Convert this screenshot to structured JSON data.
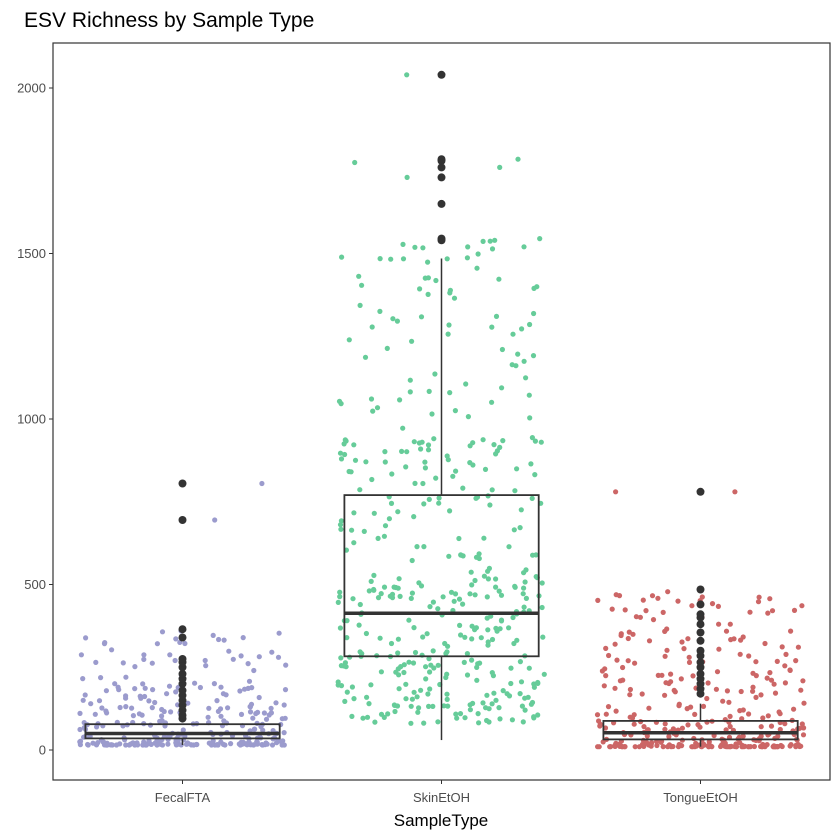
{
  "chart_data": {
    "type": "box",
    "title": "ESV Richness by Sample Type",
    "xlabel": "SampleType",
    "ylabel": "",
    "ylim": [
      -90,
      2130
    ],
    "yticks": [
      0,
      500,
      1000,
      1500,
      2000
    ],
    "grid": false,
    "legend": "none",
    "categories": [
      "FecalFTA",
      "SkinEtOH",
      "TongueEtOH"
    ],
    "colors": {
      "FecalFTA": "#9b9bcd",
      "SkinEtOH": "#66cc99",
      "TongueEtOH": "#cc6666",
      "box": "#333333",
      "outlier": "#333333"
    },
    "boxes": [
      {
        "category": "FecalFTA",
        "q1": 35,
        "median": 50,
        "q3": 78,
        "whisker_low": 15,
        "whisker_high": 80,
        "outliers": [
          95,
          105,
          120,
          135,
          150,
          165,
          180,
          200,
          215,
          230,
          250,
          265,
          275,
          340,
          365,
          695,
          805
        ]
      },
      {
        "category": "SkinEtOH",
        "q1": 283,
        "median": 413,
        "q3": 770,
        "whisker_low": 30,
        "whisker_high": 1485,
        "outliers": [
          1540,
          1545,
          1650,
          1730,
          1760,
          1780,
          1785,
          2040
        ]
      },
      {
        "category": "TongueEtOH",
        "q1": 32,
        "median": 52,
        "q3": 88,
        "whisker_low": 10,
        "whisker_high": 140,
        "outliers": [
          170,
          185,
          200,
          215,
          230,
          250,
          265,
          285,
          300,
          330,
          355,
          380,
          400,
          410,
          440,
          485,
          780
        ]
      }
    ],
    "jitter": {
      "FecalFTA": {
        "n": 300,
        "range": [
          15,
          365
        ],
        "extra": [
          805,
          695
        ]
      },
      "SkinEtOH": {
        "n": 420,
        "range": [
          30,
          2040
        ],
        "extra": [
          2040,
          1785,
          1775,
          1760,
          1730,
          1650,
          1545,
          1540
        ]
      },
      "TongueEtOH": {
        "n": 330,
        "range": [
          10,
          485
        ],
        "extra": [
          780,
          780
        ]
      }
    }
  }
}
